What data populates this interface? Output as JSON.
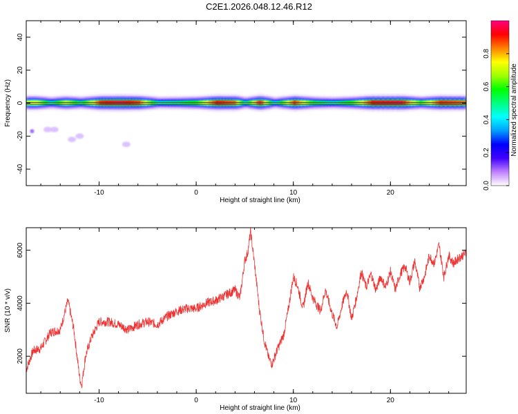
{
  "title": "C2E1.2026.048.12.46.R12",
  "chart_data": [
    {
      "type": "heatmap",
      "name": "spectrogram",
      "xlabel": "Height of straight line (km)",
      "ylabel": "Frequency (Hz)",
      "xlim": [
        -17.5,
        27.8
      ],
      "ylim": [
        -50,
        50
      ],
      "xticks": [
        -10,
        0,
        10,
        20
      ],
      "yticks": [
        -40,
        -20,
        0,
        20,
        40
      ],
      "colorbar": {
        "label": "Normalized spectral amplitude",
        "range": [
          0,
          1
        ],
        "ticks": [
          0.0,
          0.2,
          0.4,
          0.6,
          0.8
        ],
        "colors": [
          "#ffffff",
          "#c080ff",
          "#4000ff",
          "#0000ff",
          "#00a0ff",
          "#00ffff",
          "#00ff80",
          "#00ff00",
          "#a0ff00",
          "#ffff00",
          "#ff8000",
          "#ff0000",
          "#ff0080"
        ]
      },
      "band": [
        {
          "x": -17.5,
          "amp": 0.72
        },
        {
          "x": -16.5,
          "amp": 0.75
        },
        {
          "x": -15,
          "amp": 0.45
        },
        {
          "x": -13.5,
          "amp": 0.72
        },
        {
          "x": -12,
          "amp": 0.5
        },
        {
          "x": -10,
          "amp": 0.9
        },
        {
          "x": -8,
          "amp": 0.95
        },
        {
          "x": -6,
          "amp": 0.88
        },
        {
          "x": -4,
          "amp": 0.45
        },
        {
          "x": -2,
          "amp": 0.5
        },
        {
          "x": 0,
          "amp": 0.6
        },
        {
          "x": 2,
          "amp": 0.92
        },
        {
          "x": 4,
          "amp": 0.85
        },
        {
          "x": 5,
          "amp": 0.45
        },
        {
          "x": 6.5,
          "amp": 0.95
        },
        {
          "x": 8,
          "amp": 0.4
        },
        {
          "x": 10,
          "amp": 0.9
        },
        {
          "x": 12,
          "amp": 0.55
        },
        {
          "x": 14,
          "amp": 0.45
        },
        {
          "x": 16,
          "amp": 0.6
        },
        {
          "x": 18,
          "amp": 0.92
        },
        {
          "x": 21,
          "amp": 0.95
        },
        {
          "x": 23,
          "amp": 0.6
        },
        {
          "x": 25,
          "amp": 0.9
        },
        {
          "x": 27.8,
          "amp": 0.85
        }
      ],
      "patches": [
        {
          "x": -16.9,
          "y": -17,
          "amp": 0.25
        },
        {
          "x": -15.3,
          "y": -16,
          "amp": 0.05
        },
        {
          "x": -14.6,
          "y": -16,
          "amp": 0.05
        },
        {
          "x": -12.8,
          "y": -22,
          "amp": 0.1
        },
        {
          "x": -12,
          "y": -20,
          "amp": 0.05
        },
        {
          "x": -7.2,
          "y": -25,
          "amp": 0.1
        }
      ]
    },
    {
      "type": "line",
      "name": "snr",
      "xlabel": "Height of straight line (km)",
      "ylabel": "SNR (10 * v/v)",
      "xlim": [
        -17.5,
        27.8
      ],
      "ylim": [
        600,
        6850
      ],
      "xticks": [
        -10,
        0,
        10,
        20
      ],
      "yticks": [
        2000,
        4000,
        6000
      ],
      "color": "#ee3333",
      "series": [
        {
          "x": -17.5,
          "y": 1500
        },
        {
          "x": -16.8,
          "y": 2200
        },
        {
          "x": -16,
          "y": 2300
        },
        {
          "x": -15,
          "y": 2900
        },
        {
          "x": -14,
          "y": 3000
        },
        {
          "x": -13.2,
          "y": 4100
        },
        {
          "x": -12.6,
          "y": 3000
        },
        {
          "x": -12,
          "y": 1200
        },
        {
          "x": -11.8,
          "y": 900
        },
        {
          "x": -11.4,
          "y": 2000
        },
        {
          "x": -10.8,
          "y": 2700
        },
        {
          "x": -10,
          "y": 3300
        },
        {
          "x": -9,
          "y": 3300
        },
        {
          "x": -8,
          "y": 3200
        },
        {
          "x": -7,
          "y": 3000
        },
        {
          "x": -6,
          "y": 3200
        },
        {
          "x": -5,
          "y": 3300
        },
        {
          "x": -4,
          "y": 3200
        },
        {
          "x": -3,
          "y": 3500
        },
        {
          "x": -2,
          "y": 3700
        },
        {
          "x": -1,
          "y": 3800
        },
        {
          "x": 0,
          "y": 3800
        },
        {
          "x": 1,
          "y": 4000
        },
        {
          "x": 2,
          "y": 4100
        },
        {
          "x": 3,
          "y": 4300
        },
        {
          "x": 4,
          "y": 4500
        },
        {
          "x": 4.5,
          "y": 4200
        },
        {
          "x": 5,
          "y": 5600
        },
        {
          "x": 5.3,
          "y": 5900
        },
        {
          "x": 5.6,
          "y": 6700
        },
        {
          "x": 6,
          "y": 5500
        },
        {
          "x": 6.5,
          "y": 3800
        },
        {
          "x": 7,
          "y": 2600
        },
        {
          "x": 7.5,
          "y": 1900
        },
        {
          "x": 7.8,
          "y": 1700
        },
        {
          "x": 8.3,
          "y": 2200
        },
        {
          "x": 9,
          "y": 2800
        },
        {
          "x": 9.5,
          "y": 3800
        },
        {
          "x": 10,
          "y": 5000
        },
        {
          "x": 10.4,
          "y": 4700
        },
        {
          "x": 11,
          "y": 3800
        },
        {
          "x": 11.5,
          "y": 4800
        },
        {
          "x": 12,
          "y": 4200
        },
        {
          "x": 12.8,
          "y": 3700
        },
        {
          "x": 13.3,
          "y": 4500
        },
        {
          "x": 14,
          "y": 3600
        },
        {
          "x": 14.5,
          "y": 3100
        },
        {
          "x": 15,
          "y": 3900
        },
        {
          "x": 15.5,
          "y": 4500
        },
        {
          "x": 16,
          "y": 3400
        },
        {
          "x": 16.5,
          "y": 4200
        },
        {
          "x": 17,
          "y": 5200
        },
        {
          "x": 17.5,
          "y": 4600
        },
        {
          "x": 18,
          "y": 5100
        },
        {
          "x": 18.5,
          "y": 4500
        },
        {
          "x": 19,
          "y": 5000
        },
        {
          "x": 19.5,
          "y": 4600
        },
        {
          "x": 20,
          "y": 5200
        },
        {
          "x": 20.5,
          "y": 4500
        },
        {
          "x": 21,
          "y": 5100
        },
        {
          "x": 21.5,
          "y": 5400
        },
        {
          "x": 22,
          "y": 4800
        },
        {
          "x": 22.5,
          "y": 5600
        },
        {
          "x": 23,
          "y": 4600
        },
        {
          "x": 23.5,
          "y": 5000
        },
        {
          "x": 24,
          "y": 5800
        },
        {
          "x": 24.5,
          "y": 5500
        },
        {
          "x": 25,
          "y": 6200
        },
        {
          "x": 25.5,
          "y": 5000
        },
        {
          "x": 26,
          "y": 5800
        },
        {
          "x": 26.5,
          "y": 5500
        },
        {
          "x": 27,
          "y": 5700
        },
        {
          "x": 27.8,
          "y": 5900
        }
      ]
    }
  ]
}
